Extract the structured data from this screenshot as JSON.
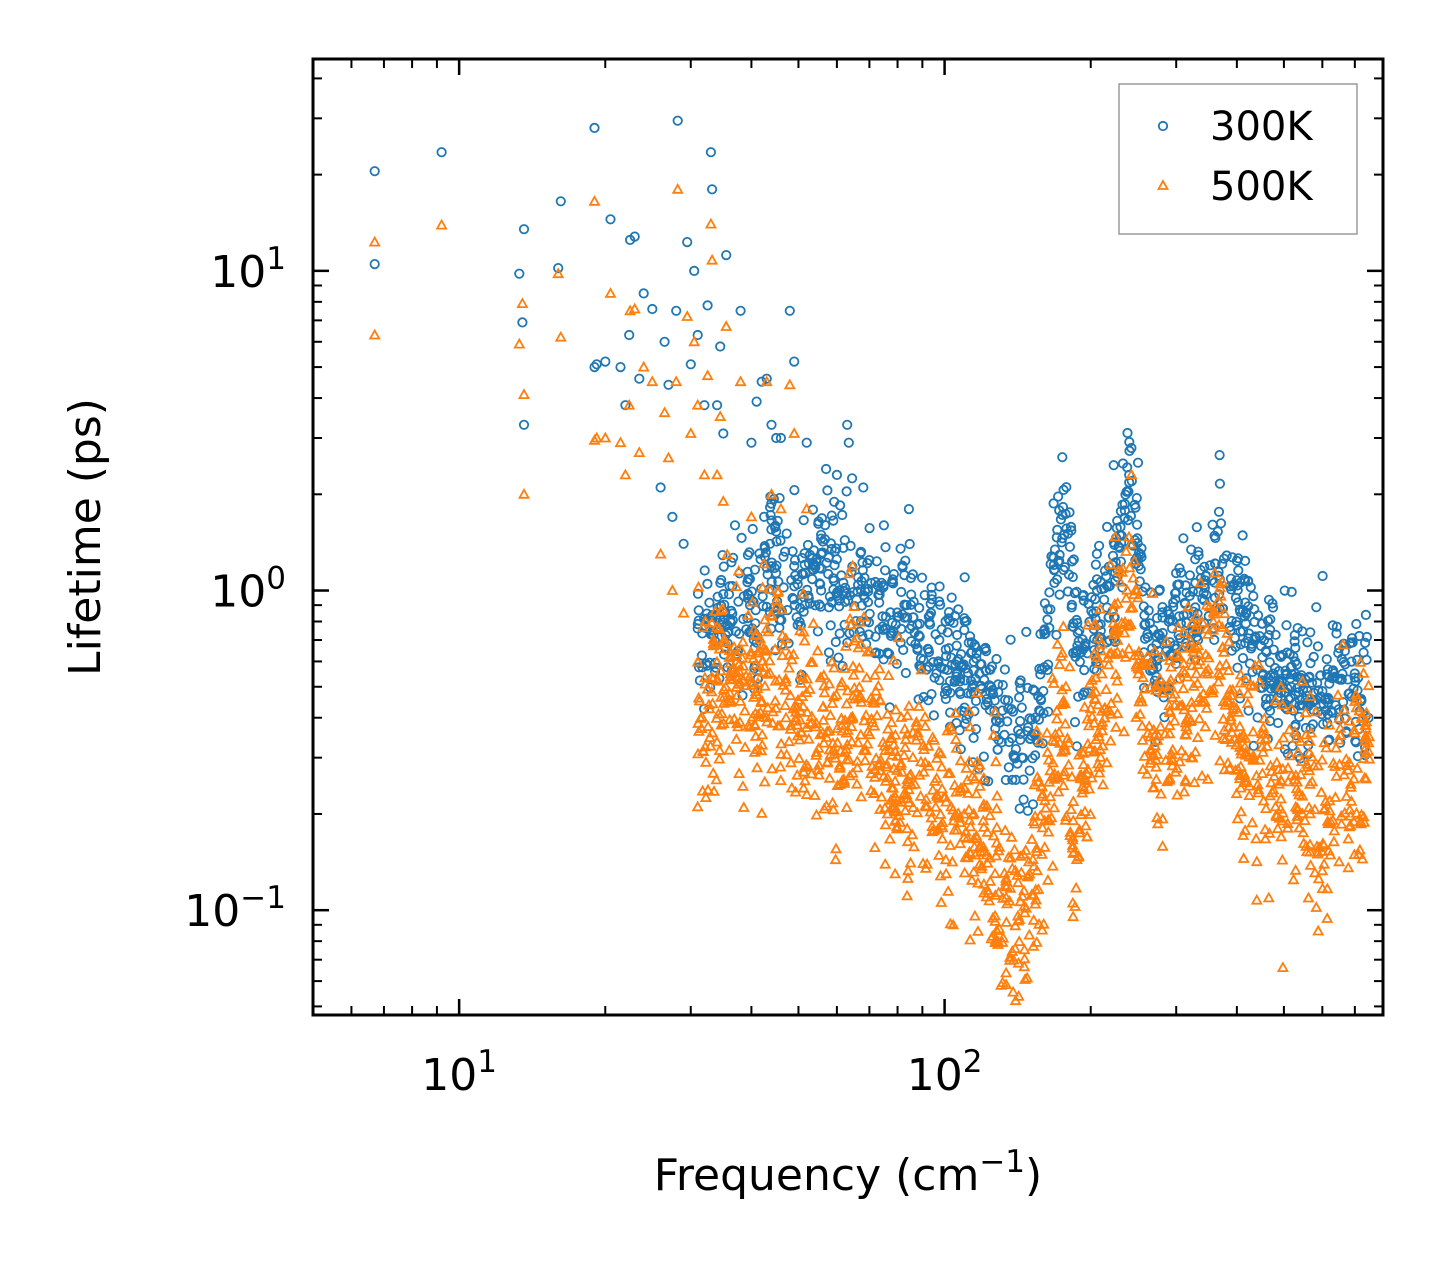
{
  "chart_data": {
    "type": "scatter",
    "xscale": "log",
    "yscale": "log",
    "xlim": [
      5,
      800
    ],
    "ylim": [
      0.047,
      46
    ],
    "xlabel": {
      "base": "Frequency (cm",
      "exponent": "−1",
      "suffix": ")"
    },
    "ylabel": "Lifetime (ps)",
    "x_ticks": [
      {
        "value": 10,
        "base": "10",
        "exponent": "1"
      },
      {
        "value": 100,
        "base": "10",
        "exponent": "2"
      }
    ],
    "y_ticks": [
      {
        "value": 0.1,
        "base": "10",
        "exponent": "−1"
      },
      {
        "value": 1,
        "base": "10",
        "exponent": "0"
      },
      {
        "value": 10,
        "base": "10",
        "exponent": "1"
      }
    ],
    "legend": {
      "position": "top-right"
    },
    "series": [
      {
        "name": "300K",
        "marker": "circle",
        "color": "#1f77b4",
        "points": [
          [
            6.7,
            20.5
          ],
          [
            6.7,
            10.5
          ],
          [
            9.2,
            23.5
          ],
          [
            13.3,
            9.8
          ],
          [
            13.5,
            6.9
          ],
          [
            13.6,
            13.5
          ],
          [
            13.6,
            3.3
          ],
          [
            16,
            10.2
          ],
          [
            16.2,
            16.5
          ],
          [
            19,
            28
          ],
          [
            19,
            5.0
          ],
          [
            19.2,
            5.1
          ],
          [
            20,
            5.2
          ],
          [
            20.5,
            14.5
          ],
          [
            21.5,
            5.0
          ],
          [
            22,
            3.8
          ],
          [
            22.4,
            6.3
          ],
          [
            22.5,
            12.5
          ],
          [
            23,
            12.8
          ],
          [
            23.5,
            4.6
          ],
          [
            24,
            8.5
          ],
          [
            25,
            7.6
          ],
          [
            26,
            2.1
          ],
          [
            26.5,
            6.0
          ],
          [
            27,
            4.4
          ],
          [
            27.5,
            1.7
          ],
          [
            28,
            7.5
          ],
          [
            28.2,
            29.5
          ],
          [
            29,
            1.4
          ],
          [
            29.5,
            12.3
          ],
          [
            30,
            5.1
          ],
          [
            30.5,
            10.0
          ],
          [
            31,
            6.3
          ],
          [
            32,
            3.8
          ],
          [
            32.5,
            7.8
          ],
          [
            33,
            23.5
          ],
          [
            33.2,
            18
          ],
          [
            34,
            3.8
          ],
          [
            34.5,
            5.8
          ],
          [
            35,
            3.1
          ],
          [
            35.5,
            11.2
          ],
          [
            37,
            1.6
          ],
          [
            38,
            7.5
          ],
          [
            40,
            2.9
          ],
          [
            41,
            3.9
          ],
          [
            42,
            4.5
          ],
          [
            43,
            4.6
          ],
          [
            44,
            3.3
          ],
          [
            45,
            3.0
          ],
          [
            46,
            3.0
          ],
          [
            48,
            7.5
          ],
          [
            49,
            5.2
          ],
          [
            52,
            2.9
          ],
          [
            57,
            2.4
          ],
          [
            60,
            2.3
          ],
          [
            63,
            3.3
          ],
          [
            63.5,
            2.9
          ],
          [
            68,
            2.1
          ],
          [
            75,
            1.6
          ],
          [
            110,
            1.1
          ],
          [
            110,
            0.8
          ],
          [
            240,
            2.3
          ],
          [
            243,
            2.2
          ],
          [
            650,
            0.66
          ],
          [
            700,
            0.55
          ],
          [
            720,
            0.45
          ]
        ],
        "trend": {
          "centers": [
            [
              31,
              0.78
            ],
            [
              35,
              0.83
            ],
            [
              40,
              0.9
            ],
            [
              45,
              1.2
            ],
            [
              50,
              0.95
            ],
            [
              55,
              1.3
            ],
            [
              60,
              1.1
            ],
            [
              65,
              1.0
            ],
            [
              70,
              0.92
            ],
            [
              80,
              0.85
            ],
            [
              90,
              0.7
            ],
            [
              100,
              0.62
            ],
            [
              110,
              0.55
            ],
            [
              120,
              0.47
            ],
            [
              130,
              0.4
            ],
            [
              140,
              0.34
            ],
            [
              150,
              0.36
            ],
            [
              155,
              0.45
            ],
            [
              160,
              0.62
            ],
            [
              165,
              0.85
            ],
            [
              170,
              1.35
            ],
            [
              175,
              1.7
            ],
            [
              180,
              1.4
            ],
            [
              185,
              0.9
            ],
            [
              190,
              0.55
            ],
            [
              200,
              0.7
            ],
            [
              210,
              0.85
            ],
            [
              220,
              1.05
            ],
            [
              230,
              1.55
            ],
            [
              240,
              2.0
            ],
            [
              248,
              1.6
            ],
            [
              255,
              0.95
            ],
            [
              270,
              0.6
            ],
            [
              290,
              0.72
            ],
            [
              310,
              0.82
            ],
            [
              330,
              0.85
            ],
            [
              350,
              1.0
            ],
            [
              365,
              1.15
            ],
            [
              380,
              1.0
            ],
            [
              400,
              0.8
            ],
            [
              450,
              0.6
            ],
            [
              500,
              0.52
            ],
            [
              560,
              0.46
            ],
            [
              620,
              0.5
            ],
            [
              700,
              0.5
            ],
            [
              750,
              0.5
            ]
          ],
          "spread": 0.2,
          "count": 1300
        }
      },
      {
        "name": "500K",
        "marker": "triangle",
        "color": "#ff7f0e",
        "points": [
          [
            6.7,
            12.3
          ],
          [
            6.7,
            6.3
          ],
          [
            9.2,
            13.9
          ],
          [
            13.3,
            5.9
          ],
          [
            13.5,
            7.9
          ],
          [
            13.6,
            4.1
          ],
          [
            13.6,
            2.0
          ],
          [
            16,
            9.8
          ],
          [
            16.2,
            6.2
          ],
          [
            19,
            16.5
          ],
          [
            19,
            2.95
          ],
          [
            19.2,
            3.0
          ],
          [
            20,
            3.0
          ],
          [
            20.5,
            8.5
          ],
          [
            21.5,
            2.9
          ],
          [
            22,
            2.3
          ],
          [
            22.4,
            3.8
          ],
          [
            22.5,
            7.5
          ],
          [
            23,
            7.6
          ],
          [
            23.5,
            2.7
          ],
          [
            24,
            5.0
          ],
          [
            25,
            4.5
          ],
          [
            26,
            1.3
          ],
          [
            26.5,
            3.6
          ],
          [
            27,
            2.6
          ],
          [
            27.5,
            1.0
          ],
          [
            28,
            4.5
          ],
          [
            28.2,
            18
          ],
          [
            29,
            0.85
          ],
          [
            29.5,
            7.2
          ],
          [
            30,
            3.1
          ],
          [
            30.5,
            6.0
          ],
          [
            31,
            3.8
          ],
          [
            32,
            2.3
          ],
          [
            32.5,
            4.7
          ],
          [
            33,
            14
          ],
          [
            33.2,
            10.8
          ],
          [
            34,
            2.3
          ],
          [
            34.5,
            3.5
          ],
          [
            35,
            1.9
          ],
          [
            35.5,
            6.7
          ],
          [
            38,
            4.5
          ],
          [
            40,
            1.7
          ],
          [
            43,
            4.5
          ],
          [
            44,
            2.0
          ],
          [
            46,
            1.8
          ],
          [
            48,
            4.4
          ],
          [
            49,
            3.1
          ],
          [
            52,
            1.8
          ]
        ],
        "trend": {
          "centers": [
            [
              31,
              0.47
            ],
            [
              35,
              0.5
            ],
            [
              40,
              0.52
            ],
            [
              45,
              0.55
            ],
            [
              50,
              0.42
            ],
            [
              55,
              0.38
            ],
            [
              60,
              0.3
            ],
            [
              65,
              0.5
            ],
            [
              70,
              0.4
            ],
            [
              75,
              0.3
            ],
            [
              80,
              0.25
            ],
            [
              90,
              0.28
            ],
            [
              100,
              0.22
            ],
            [
              110,
              0.2
            ],
            [
              120,
              0.15
            ],
            [
              130,
              0.12
            ],
            [
              140,
              0.1
            ],
            [
              150,
              0.11
            ],
            [
              160,
              0.18
            ],
            [
              170,
              0.35
            ],
            [
              175,
              0.5
            ],
            [
              180,
              0.3
            ],
            [
              185,
              0.12
            ],
            [
              190,
              0.2
            ],
            [
              200,
              0.35
            ],
            [
              210,
              0.45
            ],
            [
              220,
              0.55
            ],
            [
              230,
              0.75
            ],
            [
              240,
              1.0
            ],
            [
              250,
              0.7
            ],
            [
              260,
              0.38
            ],
            [
              280,
              0.33
            ],
            [
              300,
              0.4
            ],
            [
              330,
              0.46
            ],
            [
              350,
              0.55
            ],
            [
              365,
              0.7
            ],
            [
              380,
              0.5
            ],
            [
              400,
              0.3
            ],
            [
              450,
              0.25
            ],
            [
              500,
              0.22
            ],
            [
              550,
              0.25
            ],
            [
              600,
              0.17
            ],
            [
              650,
              0.25
            ],
            [
              700,
              0.3
            ],
            [
              750,
              0.32
            ]
          ],
          "spread": 0.28,
          "count": 1500
        }
      }
    ]
  }
}
